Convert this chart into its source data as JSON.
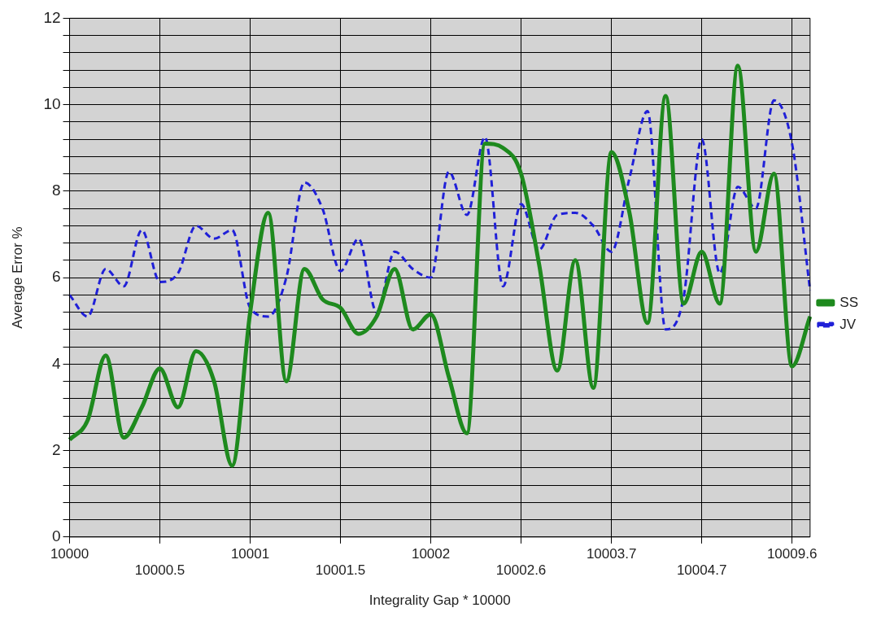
{
  "chart_data": {
    "type": "line",
    "xlabel": "Integrality Gap * 10000",
    "ylabel": "Average Error %",
    "categories": [
      "10000",
      null,
      null,
      null,
      null,
      "10000.5",
      null,
      null,
      null,
      null,
      "10001",
      null,
      null,
      null,
      null,
      "10001.5",
      null,
      null,
      null,
      null,
      "10002",
      null,
      null,
      null,
      null,
      "10002.6",
      null,
      null,
      null,
      null,
      "10003.7",
      null,
      null,
      null,
      null,
      "10004.7",
      null,
      null,
      null,
      null,
      "10009.6",
      null
    ],
    "series": [
      {
        "name": "SS",
        "color": "#1e8a1e",
        "line_style": "solid",
        "values": [
          2.25,
          2.7,
          4.2,
          2.3,
          3.0,
          3.9,
          3.0,
          4.3,
          3.6,
          1.65,
          5.2,
          7.5,
          3.6,
          6.2,
          5.5,
          5.3,
          4.7,
          5.1,
          6.2,
          4.8,
          5.15,
          3.7,
          2.4,
          9.1,
          9.0,
          8.4,
          6.3,
          3.85,
          6.4,
          3.45,
          8.9,
          7.5,
          4.95,
          10.2,
          5.4,
          6.6,
          5.4,
          10.9,
          6.6,
          8.4,
          3.95,
          5.1
        ]
      },
      {
        "name": "JV",
        "color": "#2020d8",
        "line_style": "dashed",
        "values": [
          5.6,
          5.1,
          6.2,
          5.8,
          7.1,
          5.9,
          6.1,
          7.2,
          6.9,
          7.1,
          5.3,
          5.1,
          6.0,
          8.2,
          7.6,
          6.15,
          6.9,
          5.2,
          6.6,
          6.2,
          6.0,
          8.45,
          7.45,
          9.25,
          5.8,
          7.7,
          6.65,
          7.45,
          7.5,
          7.2,
          6.6,
          8.3,
          9.85,
          4.8,
          5.55,
          9.2,
          6.1,
          8.1,
          7.6,
          10.1,
          9.1,
          5.7
        ]
      }
    ],
    "ylim": [
      0,
      12
    ],
    "yticks": [
      0,
      {
        "value": 0.4,
        "label": null
      },
      {
        "value": 0.8,
        "label": null
      },
      {
        "value": 1.2,
        "label": null
      },
      {
        "value": 1.6,
        "label": null
      },
      2,
      {
        "value": 2.4,
        "label": null
      },
      {
        "value": 2.8,
        "label": null
      },
      {
        "value": 3.2,
        "label": null
      },
      {
        "value": 3.6,
        "label": null
      },
      4,
      {
        "value": 4.4,
        "label": null
      },
      {
        "value": 4.8,
        "label": null
      },
      {
        "value": 5.2,
        "label": null
      },
      {
        "value": 5.6,
        "label": null
      },
      6,
      {
        "value": 6.4,
        "label": null
      },
      {
        "value": 6.8,
        "label": null
      },
      {
        "value": 7.2,
        "label": null
      },
      {
        "value": 7.6,
        "label": null
      },
      8,
      {
        "value": 8.4,
        "label": null
      },
      {
        "value": 8.8,
        "label": null
      },
      {
        "value": 9.2,
        "label": null
      },
      {
        "value": 9.6,
        "label": null
      },
      10,
      {
        "value": 10.4,
        "label": null
      },
      {
        "value": 10.8,
        "label": null
      },
      {
        "value": 11.2,
        "label": null
      },
      {
        "value": 11.6,
        "label": null
      },
      12
    ],
    "grid": true,
    "legend": "right",
    "marker": "none"
  }
}
